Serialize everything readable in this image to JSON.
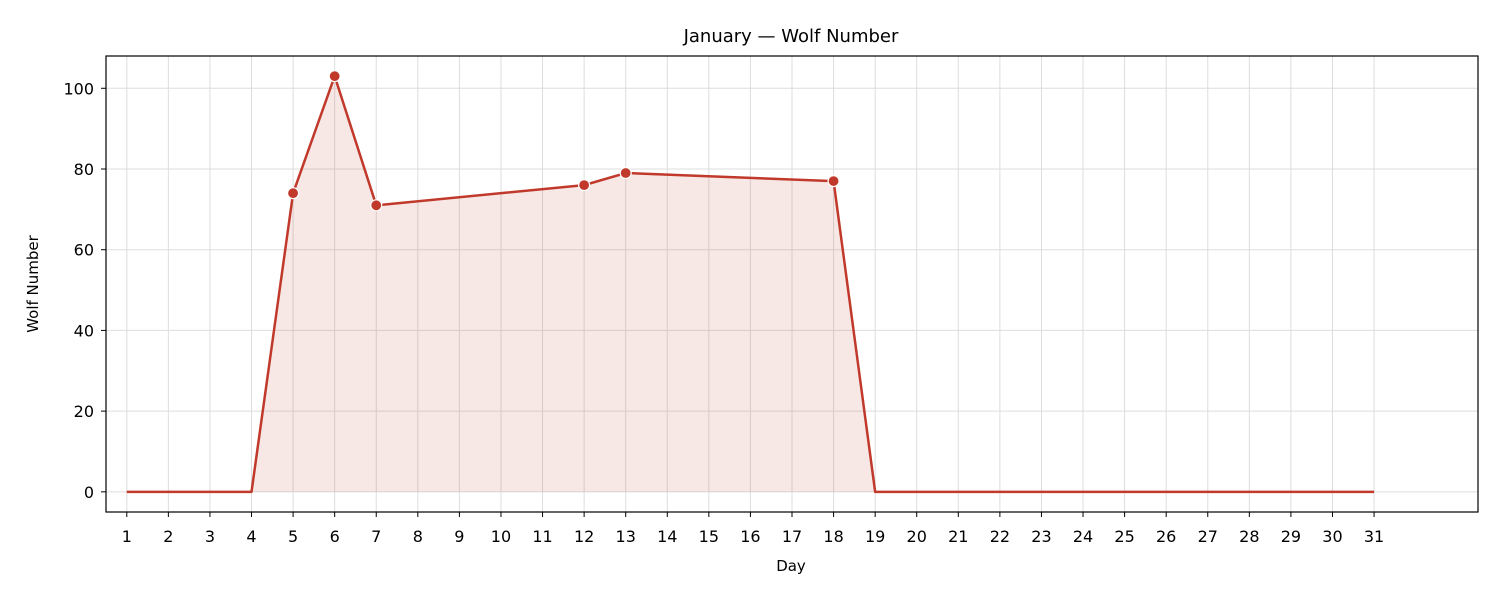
{
  "chart_data": {
    "type": "area",
    "title": "January — Wolf Number",
    "xlabel": "Day",
    "ylabel": "Wolf Number",
    "x": [
      1,
      2,
      3,
      4,
      5,
      6,
      7,
      8,
      9,
      10,
      11,
      12,
      13,
      14,
      15,
      16,
      17,
      18,
      19,
      20,
      21,
      22,
      23,
      24,
      25,
      26,
      27,
      28,
      29,
      30,
      31
    ],
    "x_tick_labels": [
      "1",
      "2",
      "3",
      "4",
      "5",
      "6",
      "7",
      "8",
      "9",
      "10",
      "11",
      "12",
      "13",
      "14",
      "15",
      "16",
      "17",
      "18",
      "19",
      "20",
      "21",
      "22",
      "23",
      "24",
      "25",
      "26",
      "27",
      "28",
      "29",
      "30",
      "31"
    ],
    "xlim": [
      0.5,
      33.5
    ],
    "ylim": [
      -5,
      108
    ],
    "y_ticks": [
      0,
      20,
      40,
      60,
      80,
      100
    ],
    "y_tick_labels": [
      "0",
      "20",
      "40",
      "60",
      "80",
      "100"
    ],
    "grid": true,
    "series": [
      {
        "line": [
          [
            1,
            0
          ],
          [
            4,
            0
          ],
          [
            5,
            74
          ],
          [
            6,
            103
          ],
          [
            7,
            71
          ],
          [
            12,
            76
          ],
          [
            13,
            79
          ],
          [
            18,
            77
          ],
          [
            19,
            0
          ],
          [
            31,
            0
          ]
        ],
        "markers": [
          [
            5,
            74
          ],
          [
            6,
            103
          ],
          [
            7,
            71
          ],
          [
            12,
            76
          ],
          [
            13,
            79
          ],
          [
            18,
            77
          ]
        ],
        "color": "#c0392b",
        "fill_color": "#c0392b",
        "fill_opacity": 0.12,
        "marker_edge_color": "#ffffff"
      }
    ],
    "axis_color": "#000000",
    "grid_color": "#dddddd"
  }
}
